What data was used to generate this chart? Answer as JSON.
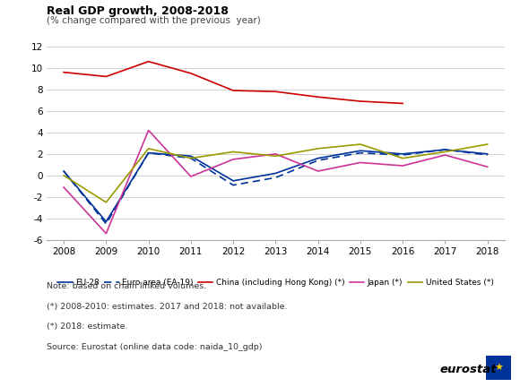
{
  "years": [
    2008,
    2009,
    2010,
    2011,
    2012,
    2013,
    2014,
    2015,
    2016,
    2017,
    2018
  ],
  "eu28": [
    0.4,
    -4.3,
    2.1,
    1.8,
    -0.5,
    0.2,
    1.6,
    2.3,
    2.0,
    2.4,
    2.0
  ],
  "ea19": [
    0.4,
    -4.5,
    2.1,
    1.6,
    -0.9,
    -0.2,
    1.4,
    2.1,
    1.9,
    2.4,
    1.9
  ],
  "china": [
    9.6,
    9.2,
    10.6,
    9.5,
    7.9,
    7.8,
    7.3,
    6.9,
    6.7,
    null,
    null
  ],
  "japan": [
    -1.1,
    -5.4,
    4.2,
    -0.1,
    1.5,
    2.0,
    0.4,
    1.2,
    0.9,
    1.9,
    0.8
  ],
  "usa": [
    0.0,
    -2.5,
    2.5,
    1.6,
    2.2,
    1.8,
    2.5,
    2.9,
    1.6,
    2.2,
    2.9
  ],
  "eu28_color": "#003399",
  "ea19_color": "#003399",
  "china_color": "#CC0000",
  "japan_color": "#CC3399",
  "usa_color": "#999900",
  "title": "Real GDP growth, 2008-2018",
  "subtitle": "(% change compared with the previous  year)",
  "ylim": [
    -6,
    12
  ],
  "yticks": [
    -6,
    -4,
    -2,
    0,
    2,
    4,
    6,
    8,
    10,
    12
  ],
  "note_line1": "Note: based on chain linked volumes.",
  "note_line2": "(*) 2008-2010: estimates. 2017 and 2018: not available.",
  "note_line3": "(*) 2018: estimate.",
  "note_line4": "Source: Eurostat (online data code: naida_10_gdp)",
  "bg_color": "#ffffff",
  "grid_color": "#cccccc"
}
